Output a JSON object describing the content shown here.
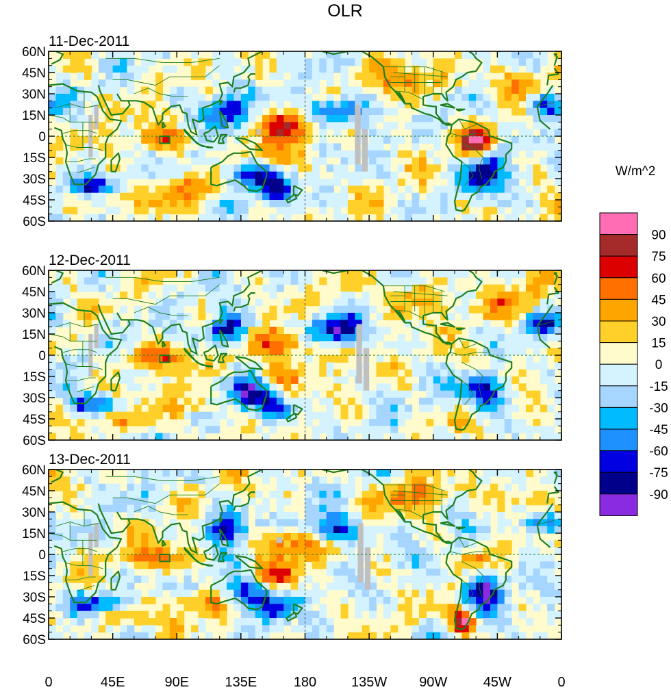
{
  "chart_data": {
    "type": "heatmap",
    "title": "OLR",
    "units": "W/m^2",
    "panels": [
      {
        "date": "11-Dec-2011"
      },
      {
        "date": "12-Dec-2011"
      },
      {
        "date": "13-Dec-2011"
      }
    ],
    "lat_ticks": [
      "60N",
      "45N",
      "30N",
      "15N",
      "0",
      "15S",
      "30S",
      "45S",
      "60S"
    ],
    "lon_ticks": [
      "0",
      "45E",
      "90E",
      "135E",
      "180",
      "135W",
      "90W",
      "45W",
      "0"
    ],
    "lat_range": [
      -60,
      60
    ],
    "lon_range": [
      0,
      360
    ],
    "colorbar": {
      "levels": [
        "90",
        "75",
        "60",
        "45",
        "30",
        "15",
        "0",
        "-15",
        "-30",
        "-45",
        "-60",
        "-75",
        "-90"
      ],
      "colors": [
        "#ff6eb4",
        "#a52a2a",
        "#dd0000",
        "#ff7000",
        "#ffa500",
        "#ffd02a",
        "#fffbcc",
        "#d4f3ff",
        "#a6d6ff",
        "#00bbff",
        "#1e90ff",
        "#0000e0",
        "#00008b",
        "#8a2be2"
      ]
    },
    "coast_color": "#1e7f1e",
    "missing_color": "#c0c0c0"
  }
}
